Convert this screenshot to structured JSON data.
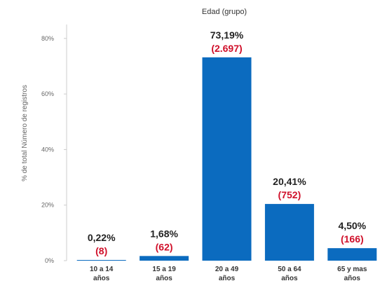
{
  "chart_data": {
    "type": "bar",
    "title": "Edad (grupo)",
    "ylabel": "% de total Número de registros",
    "xlabel": "",
    "ylim": [
      0,
      85
    ],
    "yticks": [
      "0%",
      "20%",
      "40%",
      "60%",
      "80%"
    ],
    "ytick_values": [
      0,
      20,
      40,
      60,
      80
    ],
    "grid": false,
    "categories": [
      [
        "10 a 14",
        "años"
      ],
      [
        "15 a 19",
        "años"
      ],
      [
        "20 a 49",
        "años"
      ],
      [
        "50 a 64",
        "años"
      ],
      [
        "65 y mas",
        "años"
      ]
    ],
    "values": [
      0.22,
      1.68,
      73.19,
      20.41,
      4.5
    ],
    "percent_labels": [
      "0,22%",
      "1,68%",
      "73,19%",
      "20,41%",
      "4,50%"
    ],
    "count_labels": [
      "(8)",
      "(62)",
      "(2.697)",
      "(752)",
      "(166)"
    ],
    "colors": {
      "bar": "#0b6bbf",
      "count_label": "#d0102a",
      "percent_label": "#222222",
      "axis": "#cccccc"
    }
  }
}
